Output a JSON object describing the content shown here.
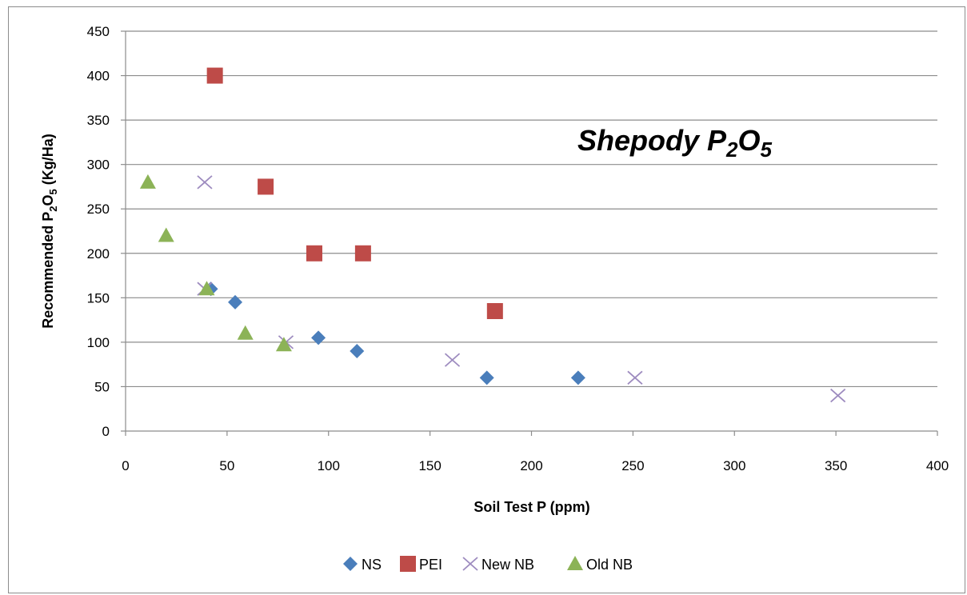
{
  "chart_data": {
    "type": "scatter",
    "title": "Shepody P",
    "title_sub": "2",
    "title_tail": "O",
    "title_sub2": "5",
    "xlabel": "Soil Test P (ppm)",
    "ylabel_parts": [
      "Recommended P",
      "2",
      "O",
      "5",
      " (Kg/Ha)"
    ],
    "xlim": [
      0,
      400
    ],
    "ylim": [
      0,
      450
    ],
    "x_ticks": [
      "0",
      "50",
      "100",
      "150",
      "200",
      "250",
      "300",
      "350",
      "400"
    ],
    "y_ticks": [
      "0",
      "50",
      "100",
      "150",
      "200",
      "250",
      "300",
      "350",
      "400",
      "450"
    ],
    "grid": "horizontal",
    "legend_position": "bottom",
    "series": [
      {
        "name": "NS",
        "marker": "diamond",
        "color": "#4a7ebb",
        "points": [
          [
            42,
            160
          ],
          [
            54,
            145
          ],
          [
            95,
            105
          ],
          [
            114,
            90
          ],
          [
            178,
            60
          ],
          [
            223,
            60
          ]
        ]
      },
      {
        "name": "PEI",
        "marker": "square",
        "color": "#be4b48",
        "points": [
          [
            44,
            400
          ],
          [
            69,
            275
          ],
          [
            93,
            200
          ],
          [
            117,
            200
          ],
          [
            182,
            135
          ]
        ]
      },
      {
        "name": "New NB",
        "marker": "x",
        "color": "#9d8bbf",
        "points": [
          [
            39,
            280
          ],
          [
            39,
            160
          ],
          [
            79,
            100
          ],
          [
            161,
            80
          ],
          [
            251,
            60
          ],
          [
            351,
            40
          ]
        ]
      },
      {
        "name": "Old NB",
        "marker": "triangle",
        "color": "#8cb357",
        "points": [
          [
            11,
            280
          ],
          [
            20,
            220
          ],
          [
            40,
            160
          ],
          [
            59,
            110
          ],
          [
            78,
            97
          ]
        ]
      }
    ]
  }
}
